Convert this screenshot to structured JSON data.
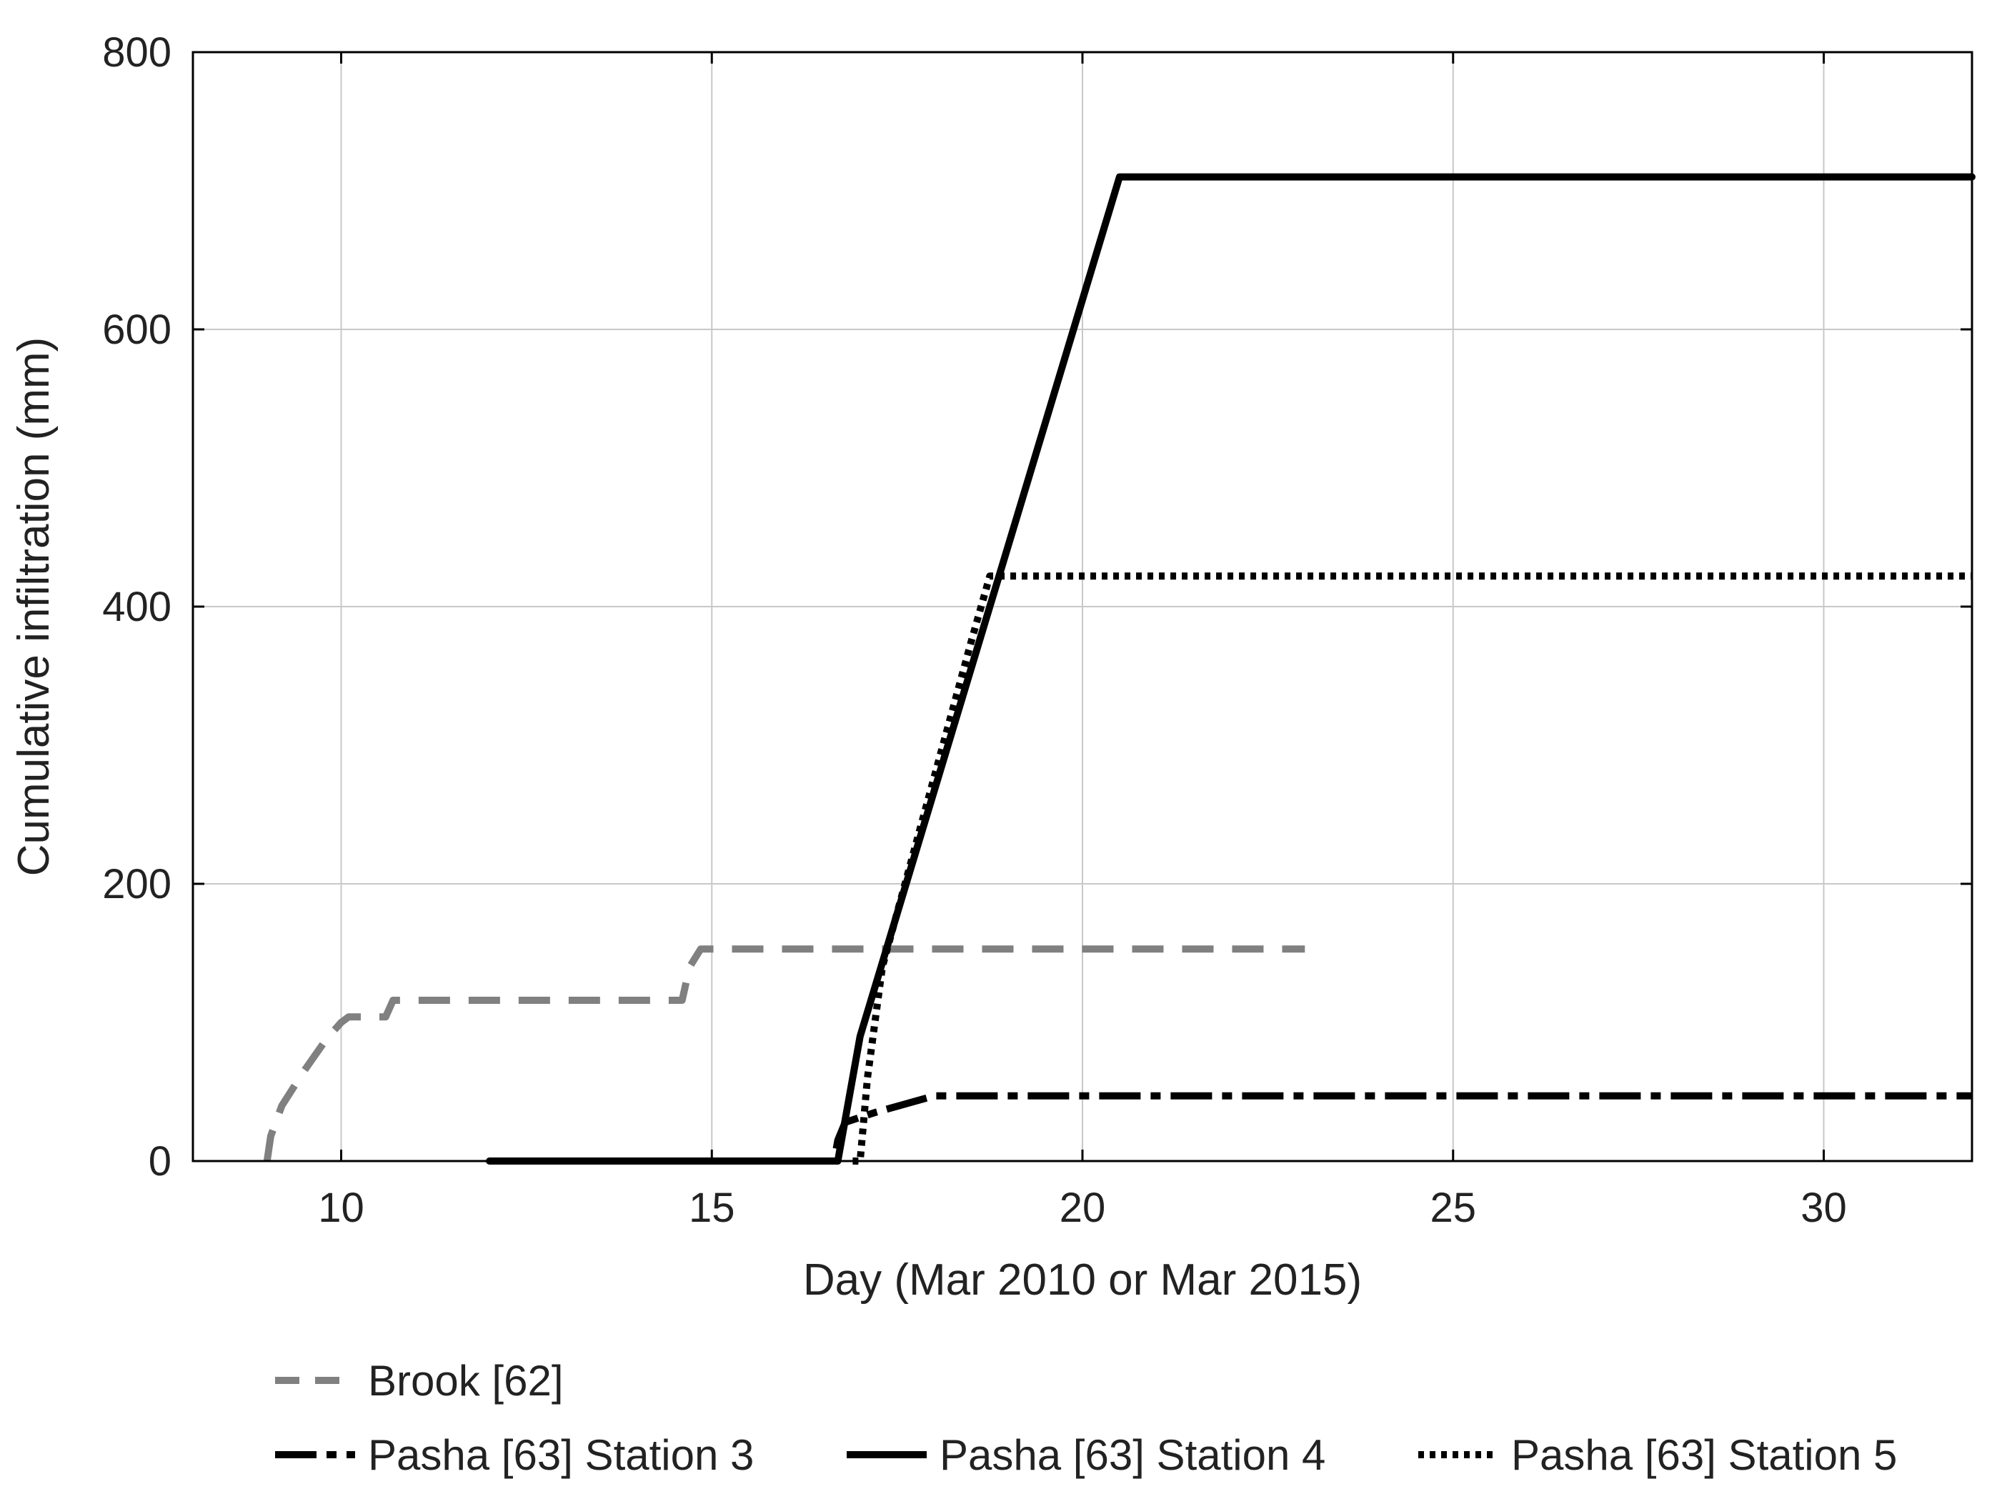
{
  "chart_data": {
    "type": "line",
    "title": "",
    "xlabel": "Day (Mar 2010 or Mar 2015)",
    "ylabel": "Cumulative infiltration (mm)",
    "xlim": [
      8,
      32
    ],
    "ylim": [
      0,
      800
    ],
    "xticks": [
      10,
      15,
      20,
      25,
      30
    ],
    "yticks": [
      0,
      200,
      400,
      600,
      800
    ],
    "xtick_labels": [
      "10",
      "15",
      "20",
      "25",
      "30"
    ],
    "ytick_labels": [
      "0",
      "200",
      "400",
      "600",
      "800"
    ],
    "grid": true,
    "legend_position": "bottom",
    "series": [
      {
        "name": "Brook [62]",
        "color": "#808080",
        "style": "dashed",
        "points": [
          [
            9.0,
            0
          ],
          [
            9.05,
            18
          ],
          [
            9.2,
            40
          ],
          [
            9.5,
            65
          ],
          [
            9.8,
            88
          ],
          [
            10.0,
            100
          ],
          [
            10.1,
            104
          ],
          [
            10.6,
            104
          ],
          [
            10.7,
            116
          ],
          [
            14.6,
            116
          ],
          [
            14.7,
            140
          ],
          [
            14.85,
            153
          ],
          [
            23.0,
            153
          ]
        ]
      },
      {
        "name": "Pasha [63] Station 3",
        "color": "#000000",
        "style": "dash-long",
        "points": [
          [
            12.0,
            0
          ],
          [
            16.65,
            0
          ],
          [
            16.7,
            15
          ],
          [
            16.8,
            28
          ],
          [
            17.2,
            35
          ],
          [
            18.0,
            47
          ],
          [
            32.0,
            47
          ]
        ]
      },
      {
        "name": "Pasha [63] Station 4",
        "color": "#000000",
        "style": "solid",
        "points": [
          [
            12.0,
            0
          ],
          [
            16.7,
            0
          ],
          [
            16.8,
            30
          ],
          [
            17.0,
            90
          ],
          [
            20.5,
            710
          ],
          [
            32.0,
            710
          ]
        ]
      },
      {
        "name": "Pasha [63] Station 5",
        "color": "#000000",
        "style": "dotted",
        "points": [
          [
            16.9,
            0
          ],
          [
            17.0,
            0
          ],
          [
            17.1,
            60
          ],
          [
            17.3,
            140
          ],
          [
            18.5,
            375
          ],
          [
            18.75,
            422
          ],
          [
            32.0,
            422
          ]
        ]
      }
    ]
  }
}
